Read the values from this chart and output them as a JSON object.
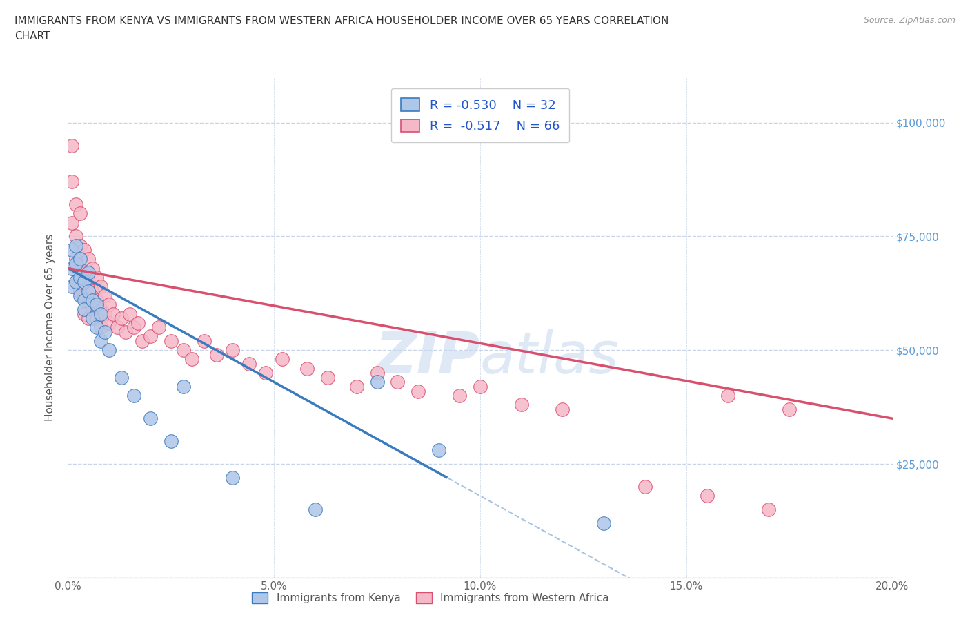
{
  "title": "IMMIGRANTS FROM KENYA VS IMMIGRANTS FROM WESTERN AFRICA HOUSEHOLDER INCOME OVER 65 YEARS CORRELATION\nCHART",
  "source": "Source: ZipAtlas.com",
  "ylabel": "Householder Income Over 65 years",
  "xlim": [
    0.0,
    0.2
  ],
  "ylim": [
    0,
    110000
  ],
  "yticks": [
    0,
    25000,
    50000,
    75000,
    100000
  ],
  "ytick_labels": [
    "",
    "$25,000",
    "$50,000",
    "$75,000",
    "$100,000"
  ],
  "xticks": [
    0.0,
    0.05,
    0.1,
    0.15,
    0.2
  ],
  "xtick_labels": [
    "0.0%",
    "5.0%",
    "10.0%",
    "15.0%",
    "20.0%"
  ],
  "kenya_color": "#aec6e8",
  "kenya_line_color": "#3a7abf",
  "western_africa_color": "#f5b8c8",
  "western_africa_line_color": "#d94f6e",
  "kenya_R": -0.53,
  "kenya_N": 32,
  "western_africa_R": -0.517,
  "western_africa_N": 66,
  "watermark": "ZIPatlas",
  "background_color": "#ffffff",
  "grid_color": "#c8d4e8",
  "kenya_line_intercept": 68000,
  "kenya_line_slope": -500000,
  "kenya_line_solid_end": 0.092,
  "western_africa_line_intercept": 68000,
  "western_africa_line_slope": -165000,
  "kenya_scatter_x": [
    0.001,
    0.001,
    0.001,
    0.002,
    0.002,
    0.002,
    0.003,
    0.003,
    0.003,
    0.004,
    0.004,
    0.004,
    0.005,
    0.005,
    0.006,
    0.006,
    0.007,
    0.007,
    0.008,
    0.008,
    0.009,
    0.01,
    0.013,
    0.016,
    0.02,
    0.025,
    0.028,
    0.04,
    0.06,
    0.075,
    0.09,
    0.13
  ],
  "kenya_scatter_y": [
    68000,
    64000,
    72000,
    65000,
    69000,
    73000,
    62000,
    66000,
    70000,
    61000,
    65000,
    59000,
    63000,
    67000,
    57000,
    61000,
    55000,
    60000,
    52000,
    58000,
    54000,
    50000,
    44000,
    40000,
    35000,
    30000,
    42000,
    22000,
    15000,
    43000,
    28000,
    12000
  ],
  "western_africa_scatter_x": [
    0.001,
    0.001,
    0.001,
    0.002,
    0.002,
    0.002,
    0.002,
    0.003,
    0.003,
    0.003,
    0.003,
    0.004,
    0.004,
    0.004,
    0.004,
    0.005,
    0.005,
    0.005,
    0.005,
    0.006,
    0.006,
    0.006,
    0.007,
    0.007,
    0.007,
    0.008,
    0.008,
    0.008,
    0.009,
    0.009,
    0.01,
    0.01,
    0.011,
    0.012,
    0.013,
    0.014,
    0.015,
    0.016,
    0.017,
    0.018,
    0.02,
    0.022,
    0.025,
    0.028,
    0.03,
    0.033,
    0.036,
    0.04,
    0.044,
    0.048,
    0.052,
    0.058,
    0.063,
    0.07,
    0.075,
    0.08,
    0.085,
    0.095,
    0.1,
    0.11,
    0.12,
    0.14,
    0.155,
    0.16,
    0.17,
    0.175
  ],
  "western_africa_scatter_y": [
    95000,
    78000,
    87000,
    82000,
    75000,
    70000,
    65000,
    80000,
    73000,
    68000,
    63000,
    72000,
    67000,
    62000,
    58000,
    70000,
    65000,
    61000,
    57000,
    68000,
    63000,
    59000,
    66000,
    61000,
    57000,
    64000,
    59000,
    55000,
    62000,
    58000,
    60000,
    56000,
    58000,
    55000,
    57000,
    54000,
    58000,
    55000,
    56000,
    52000,
    53000,
    55000,
    52000,
    50000,
    48000,
    52000,
    49000,
    50000,
    47000,
    45000,
    48000,
    46000,
    44000,
    42000,
    45000,
    43000,
    41000,
    40000,
    42000,
    38000,
    37000,
    20000,
    18000,
    40000,
    15000,
    37000
  ]
}
